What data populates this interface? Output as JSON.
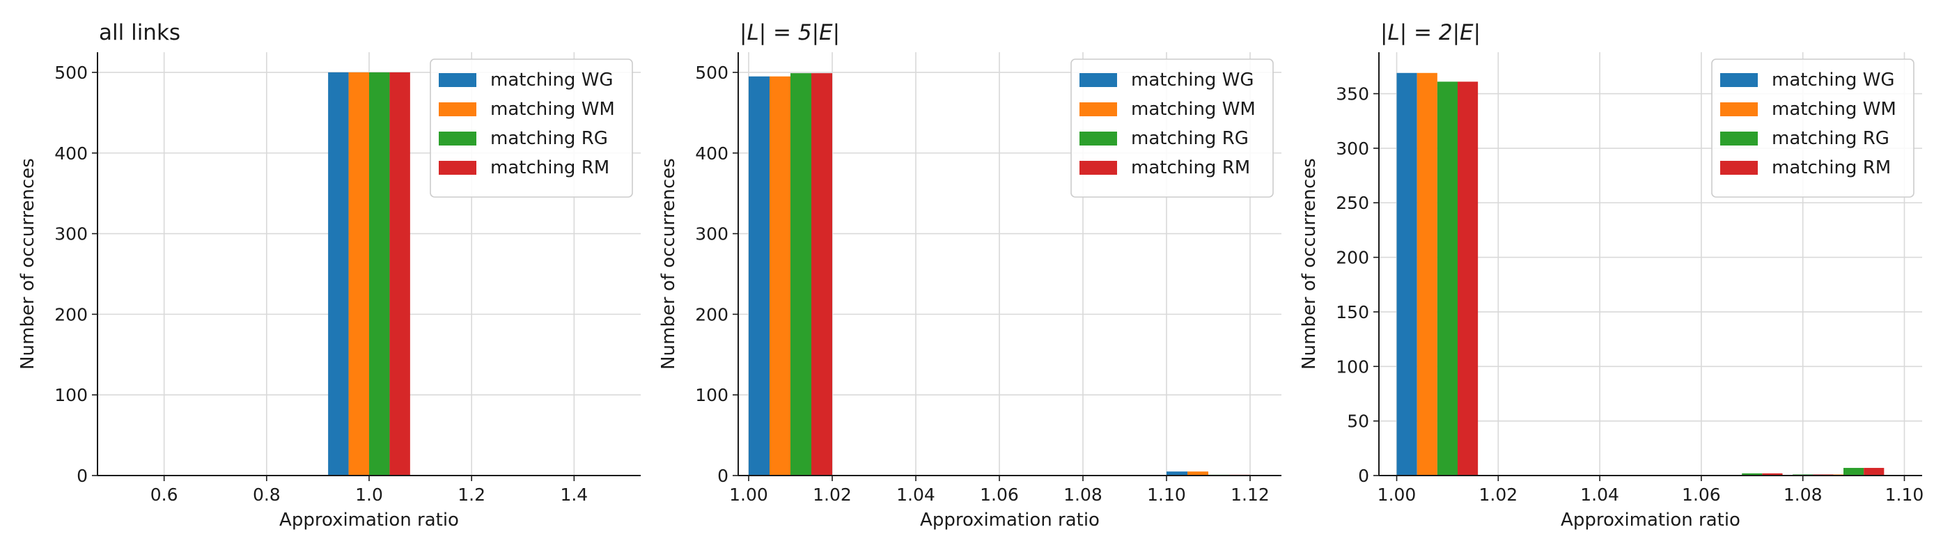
{
  "chart_data": [
    {
      "type": "bar",
      "title": "all links",
      "title_math": false,
      "xlabel": "Approximation ratio",
      "ylabel": "Number of occurrences",
      "xlim": [
        0.47,
        1.53
      ],
      "ylim": [
        0,
        525
      ],
      "xticks": [
        0.6,
        0.8,
        1.0,
        1.2,
        1.4
      ],
      "xtick_labels": [
        "0.6",
        "0.8",
        "1.0",
        "1.2",
        "1.4"
      ],
      "yticks": [
        0,
        100,
        200,
        300,
        400,
        500
      ],
      "ytick_labels": [
        "0",
        "100",
        "200",
        "300",
        "400",
        "500"
      ],
      "grid": true,
      "legend_position": "top-right",
      "bar_width": 0.04,
      "series": [
        {
          "name": "matching WG",
          "color": "#1f77b4",
          "points": [
            {
              "x": 0.94,
              "y": 500
            }
          ]
        },
        {
          "name": "matching WM",
          "color": "#ff7f0e",
          "points": [
            {
              "x": 0.98,
              "y": 500
            }
          ]
        },
        {
          "name": "matching RG",
          "color": "#2ca02c",
          "points": [
            {
              "x": 1.02,
              "y": 500
            }
          ]
        },
        {
          "name": "matching RM",
          "color": "#d62728",
          "points": [
            {
              "x": 1.06,
              "y": 500
            }
          ]
        }
      ]
    },
    {
      "type": "bar",
      "title": "|L| = 5|E|",
      "title_math": true,
      "xlabel": "Approximation ratio",
      "ylabel": "Number of occurrences",
      "xlim": [
        0.9975,
        1.1275
      ],
      "ylim": [
        0,
        525
      ],
      "xticks": [
        1.0,
        1.02,
        1.04,
        1.06,
        1.08,
        1.1,
        1.12
      ],
      "xtick_labels": [
        "1.00",
        "1.02",
        "1.04",
        "1.06",
        "1.08",
        "1.10",
        "1.12"
      ],
      "yticks": [
        0,
        100,
        200,
        300,
        400,
        500
      ],
      "ytick_labels": [
        "0",
        "100",
        "200",
        "300",
        "400",
        "500"
      ],
      "grid": true,
      "legend_position": "top-right",
      "bar_width": 0.005,
      "series": [
        {
          "name": "matching WG",
          "color": "#1f77b4",
          "points": [
            {
              "x": 1.0025,
              "y": 495
            },
            {
              "x": 1.1025,
              "y": 5
            }
          ]
        },
        {
          "name": "matching WM",
          "color": "#ff7f0e",
          "points": [
            {
              "x": 1.0075,
              "y": 495
            },
            {
              "x": 1.1075,
              "y": 5
            }
          ]
        },
        {
          "name": "matching RG",
          "color": "#2ca02c",
          "points": [
            {
              "x": 1.0125,
              "y": 499
            },
            {
              "x": 1.1125,
              "y": 1
            }
          ]
        },
        {
          "name": "matching RM",
          "color": "#d62728",
          "points": [
            {
              "x": 1.0175,
              "y": 499
            },
            {
              "x": 1.1175,
              "y": 1
            }
          ]
        }
      ]
    },
    {
      "type": "bar",
      "title": "|L| = 2|E|",
      "title_math": true,
      "xlabel": "Approximation ratio",
      "ylabel": "Number of occurrences",
      "xlim": [
        0.9965,
        1.1035
      ],
      "ylim": [
        0,
        388
      ],
      "xticks": [
        1.0,
        1.02,
        1.04,
        1.06,
        1.08,
        1.1
      ],
      "xtick_labels": [
        "1.00",
        "1.02",
        "1.04",
        "1.06",
        "1.08",
        "1.10"
      ],
      "yticks": [
        0,
        50,
        100,
        150,
        200,
        250,
        300,
        350
      ],
      "ytick_labels": [
        "0",
        "50",
        "100",
        "150",
        "200",
        "250",
        "300",
        "350"
      ],
      "grid": true,
      "legend_position": "top-right",
      "bar_width": 0.004,
      "series": [
        {
          "name": "matching WG",
          "color": "#1f77b4",
          "points": [
            {
              "x": 1.002,
              "y": 369
            },
            {
              "x": 1.072,
              "y": 0
            },
            {
              "x": 1.082,
              "y": 1
            },
            {
              "x": 1.092,
              "y": 0
            }
          ]
        },
        {
          "name": "matching WM",
          "color": "#ff7f0e",
          "points": [
            {
              "x": 1.006,
              "y": 369
            },
            {
              "x": 1.076,
              "y": 0
            },
            {
              "x": 1.086,
              "y": 1
            },
            {
              "x": 1.096,
              "y": 0
            }
          ]
        },
        {
          "name": "matching RG",
          "color": "#2ca02c",
          "points": [
            {
              "x": 1.01,
              "y": 361
            },
            {
              "x": 1.07,
              "y": 2
            },
            {
              "x": 1.08,
              "y": 1
            },
            {
              "x": 1.09,
              "y": 7
            }
          ]
        },
        {
          "name": "matching RM",
          "color": "#d62728",
          "points": [
            {
              "x": 1.014,
              "y": 361
            },
            {
              "x": 1.074,
              "y": 2
            },
            {
              "x": 1.084,
              "y": 1
            },
            {
              "x": 1.094,
              "y": 7
            }
          ]
        }
      ]
    }
  ]
}
